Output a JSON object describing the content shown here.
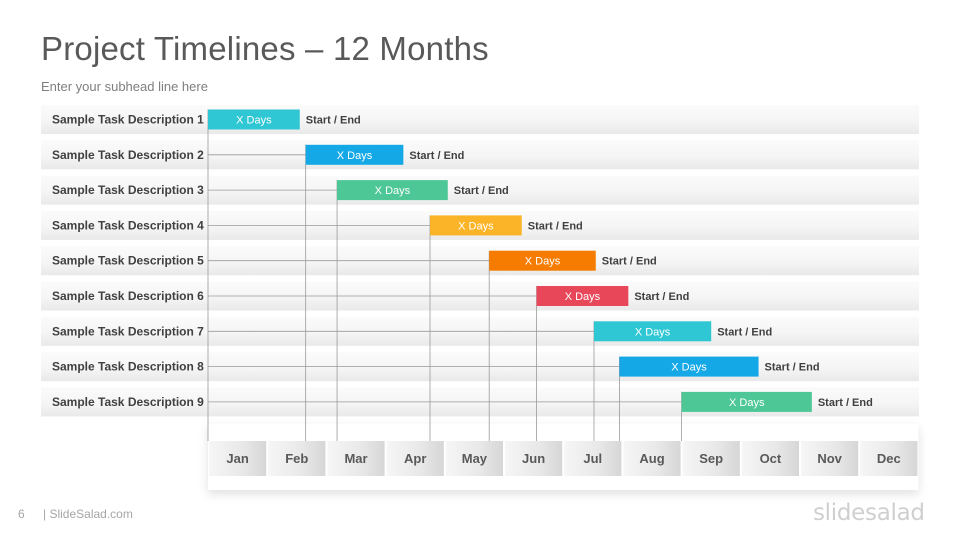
{
  "slide": {
    "title": "Project Timelines – 12 Months",
    "subtitle": "Enter your subhead  line here",
    "page_number": "6",
    "footer_brand": "| SlideSalad.com",
    "logo_text": "slidesalad"
  },
  "chart_data": {
    "type": "bar",
    "subtype": "gantt",
    "months": [
      "Jan",
      "Feb",
      "Mar",
      "Apr",
      "May",
      "Jun",
      "Jul",
      "Aug",
      "Sep",
      "Oct",
      "Nov",
      "Dec"
    ],
    "tasks": [
      {
        "label": "Sample Task Description 1",
        "start": 0.0,
        "end": 1.55,
        "bar_text": "X Days",
        "end_text": "Start / End",
        "color": "#2ec7d3"
      },
      {
        "label": "Sample Task Description 2",
        "start": 1.65,
        "end": 3.3,
        "bar_text": "X Days",
        "end_text": "Start / End",
        "color": "#14a8e6"
      },
      {
        "label": "Sample Task Description 3",
        "start": 2.18,
        "end": 4.05,
        "bar_text": "X Days",
        "end_text": "Start / End",
        "color": "#4cc795"
      },
      {
        "label": "Sample Task Description 4",
        "start": 3.75,
        "end": 5.3,
        "bar_text": "X Days",
        "end_text": "Start / End",
        "color": "#fbb427"
      },
      {
        "label": "Sample Task Description 5",
        "start": 4.75,
        "end": 6.55,
        "bar_text": "X Days",
        "end_text": "Start / End",
        "color": "#f57c00"
      },
      {
        "label": "Sample Task Description 6",
        "start": 5.55,
        "end": 7.1,
        "bar_text": "X Days",
        "end_text": "Start / End",
        "color": "#e8475a"
      },
      {
        "label": "Sample Task Description 7",
        "start": 6.52,
        "end": 8.5,
        "bar_text": "X Days",
        "end_text": "Start / End",
        "color": "#2ec7d3"
      },
      {
        "label": "Sample Task Description 8",
        "start": 6.95,
        "end": 9.3,
        "bar_text": "X Days",
        "end_text": "Start / End",
        "color": "#14a8e6"
      },
      {
        "label": "Sample Task Description 9",
        "start": 8.0,
        "end": 10.2,
        "bar_text": "X Days",
        "end_text": "Start / End",
        "color": "#4cc795"
      }
    ],
    "grid": false
  }
}
